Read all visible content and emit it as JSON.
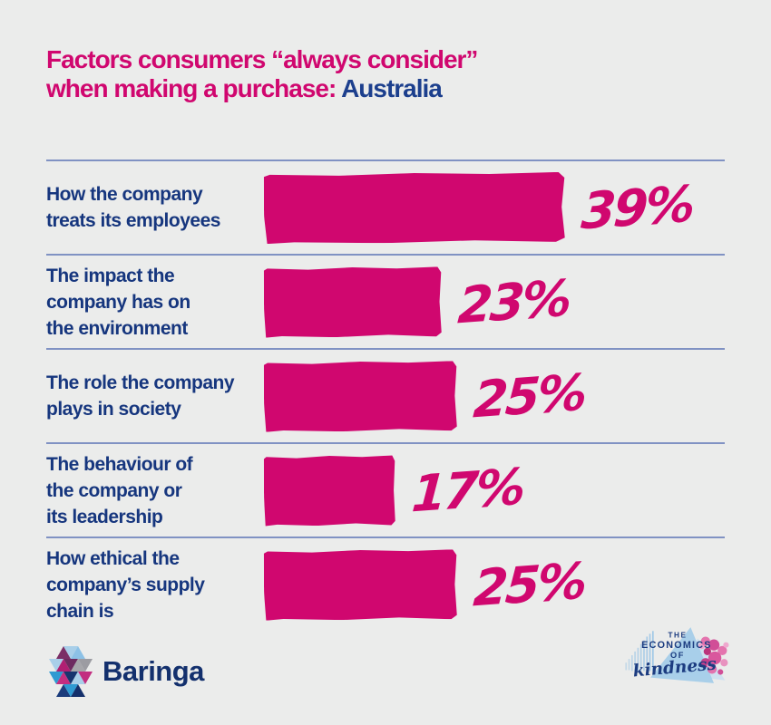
{
  "title": {
    "line1": "Factors consumers “always consider”",
    "line2_prefix": "when making a purchase: ",
    "line2_highlight": "Australia"
  },
  "chart_data": {
    "type": "bar",
    "orientation": "horizontal",
    "title": "Factors consumers “always consider” when making a purchase: Australia",
    "categories": [
      "How the company treats its employees",
      "The impact the company has on the environment",
      "The role the company plays in society",
      "The behaviour of the company or its leadership",
      "How ethical the company’s supply chain is"
    ],
    "values": [
      39,
      23,
      25,
      17,
      25
    ],
    "value_labels": [
      "39%",
      "23%",
      "25%",
      "17%",
      "25%"
    ],
    "unit": "percent",
    "xlim": [
      0,
      45
    ],
    "grid": false,
    "legend": "none",
    "row_label_lines": [
      [
        "How the company",
        "treats its employees"
      ],
      [
        "The impact the",
        "company has on",
        "the environment"
      ],
      [
        "The role the company",
        "plays in society"
      ],
      [
        "The behaviour of",
        "the company or",
        "its leadership"
      ],
      [
        "How ethical the",
        "company’s supply",
        "chain is"
      ]
    ]
  },
  "footer": {
    "baringa_wordmark": "Baringa",
    "kindness_logo_lines": [
      "THE",
      "ECONOMICS",
      "OF",
      "kindness"
    ]
  },
  "colors": {
    "background": "#ebeceb",
    "pink": "#d0076f",
    "navy_label": "#16367e",
    "navy_highlight": "#1c3f8d",
    "divider": "#8092c3",
    "baringa_navy": "#13306d",
    "kindness_blue": "#a5cde9"
  }
}
